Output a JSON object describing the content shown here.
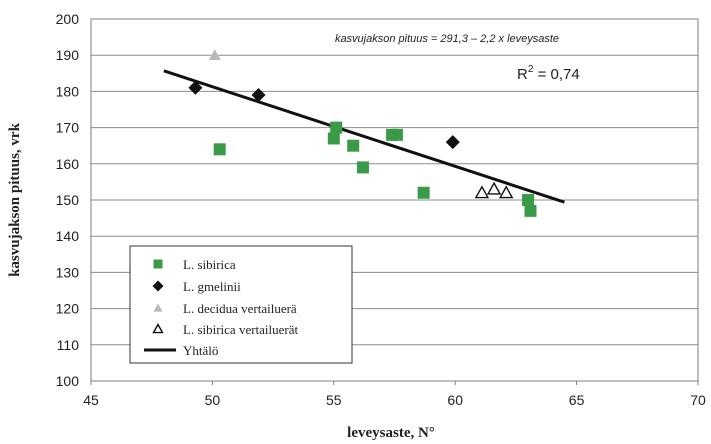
{
  "chart_data": {
    "type": "scatter",
    "title": "",
    "xlabel": "leveysaste, N°",
    "ylabel": "kasvujakson pituus, vrk",
    "xlim": [
      45,
      70
    ],
    "ylim": [
      100,
      200
    ],
    "x_ticks": [
      "45",
      "50",
      "55",
      "60",
      "65",
      "70"
    ],
    "y_ticks": [
      "100",
      "110",
      "120",
      "130",
      "140",
      "150",
      "160",
      "170",
      "180",
      "190",
      "200"
    ],
    "grid": "horizontal",
    "legend_position": "bottom-left",
    "annotations": {
      "equation": "kasvujakson pituus = 291,3 – 2,2 x leveysaste",
      "r2_label": "R",
      "r2_sup": "2",
      "r2_value": " = 0,74"
    },
    "series": [
      {
        "name": "L. sibirica",
        "marker": "square",
        "color": "#3a9a48",
        "points": [
          [
            50.3,
            164
          ],
          [
            55.0,
            167
          ],
          [
            55.1,
            170
          ],
          [
            55.8,
            165
          ],
          [
            56.2,
            159
          ],
          [
            57.4,
            168
          ],
          [
            57.6,
            168
          ],
          [
            58.7,
            152
          ],
          [
            63.0,
            150
          ],
          [
            63.1,
            147
          ]
        ]
      },
      {
        "name": "L. gmelinii",
        "marker": "diamond",
        "color": "#111111",
        "points": [
          [
            49.3,
            181
          ],
          [
            51.9,
            179
          ],
          [
            59.9,
            166
          ]
        ]
      },
      {
        "name": "L. decidua vertailuerä",
        "marker": "triangle",
        "color": "#b8b8b8",
        "points": [
          [
            50.1,
            190
          ]
        ]
      },
      {
        "name": "L. sibirica vertailuerät",
        "marker": "triangle-open",
        "color": "#111111",
        "points": [
          [
            61.1,
            152
          ],
          [
            61.6,
            153
          ],
          [
            62.1,
            152
          ]
        ]
      }
    ],
    "trendline": {
      "name": "Yhtälö",
      "x": [
        48,
        64.5
      ],
      "intercept": 291.3,
      "slope": -2.2,
      "color": "#111111"
    }
  }
}
